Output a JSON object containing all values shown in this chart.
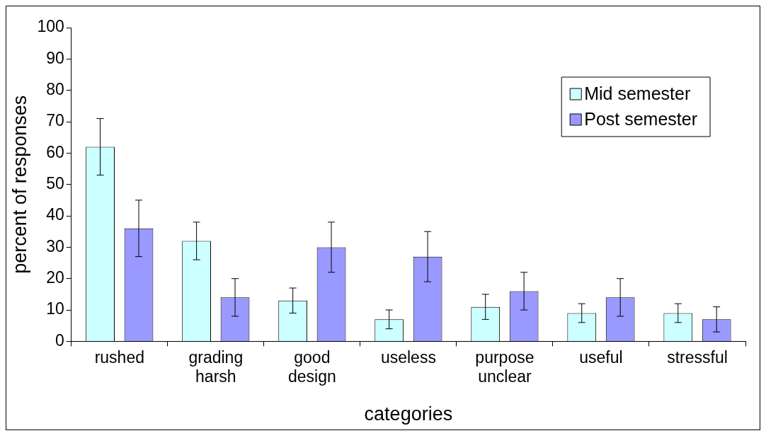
{
  "chart_data": {
    "type": "bar",
    "xlabel": "categories",
    "ylabel": "percent of responses",
    "categories": [
      "rushed",
      "grading harsh",
      "good design",
      "useless",
      "purpose unclear",
      "useful",
      "stressful"
    ],
    "series": [
      {
        "name": "Mid semester",
        "color": "#ccffff",
        "values": [
          62,
          32,
          13,
          7,
          11,
          9,
          9
        ],
        "errors": [
          9,
          6,
          4,
          3,
          4,
          3,
          3
        ]
      },
      {
        "name": "Post semester",
        "color": "#9999ff",
        "values": [
          36,
          14,
          30,
          27,
          16,
          14,
          7
        ],
        "errors": [
          9,
          6,
          8,
          8,
          6,
          6,
          4
        ]
      }
    ],
    "ylim": [
      0,
      100
    ],
    "yticks": [
      0,
      10,
      20,
      30,
      40,
      50,
      60,
      70,
      80,
      90,
      100
    ],
    "grid": false,
    "legend": "top right"
  }
}
